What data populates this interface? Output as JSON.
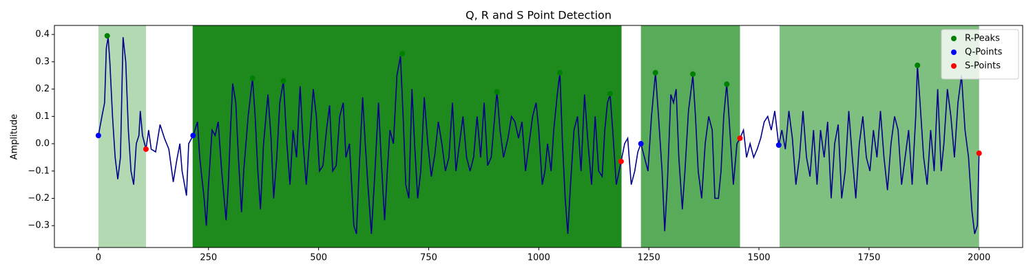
{
  "chart_data": {
    "type": "line",
    "title": "Q, R and S Point Detection",
    "y_label": "Amplitude",
    "xlim": [
      -99.95,
      2098.95
    ],
    "ylim": [
      -0.38,
      0.433
    ],
    "xticks": [
      0,
      250,
      500,
      750,
      1000,
      1250,
      1500,
      1750,
      2000
    ],
    "yticks": [
      {
        "value": -0.3,
        "label": "−0.3"
      },
      {
        "value": -0.2,
        "label": "−0.2"
      },
      {
        "value": -0.1,
        "label": "−0.1"
      },
      {
        "value": 0,
        "label": "0.0"
      },
      0.1,
      0.2,
      0.3,
      0.4
    ],
    "legend_position": "upper right",
    "spans": [
      {
        "x": [
          0,
          108
        ],
        "color": "#b3d9b3"
      },
      {
        "x": [
          214,
          1188
        ],
        "color": "#1e8a1e"
      },
      {
        "x": [
          1232,
          1457
        ],
        "color": "#58ab58"
      },
      {
        "x": [
          1547,
          2000
        ],
        "color": "#7fbf7f"
      }
    ],
    "signal": {
      "color": "#00008b",
      "x": [
        0,
        8,
        14,
        18,
        22,
        26,
        32,
        38,
        44,
        50,
        56,
        62,
        68,
        74,
        80,
        86,
        92,
        95,
        100,
        108,
        114,
        120,
        130,
        140,
        150,
        160,
        170,
        178,
        185,
        190,
        200,
        205,
        215,
        225,
        230,
        240,
        245,
        250,
        258,
        265,
        272,
        280,
        290,
        295,
        300,
        305,
        312,
        318,
        325,
        330,
        340,
        350,
        356,
        362,
        368,
        375,
        385,
        392,
        398,
        405,
        412,
        420,
        428,
        435,
        442,
        450,
        458,
        465,
        472,
        480,
        488,
        495,
        502,
        510,
        518,
        525,
        532,
        540,
        548,
        556,
        562,
        570,
        580,
        586,
        592,
        600,
        606,
        612,
        620,
        628,
        636,
        642,
        650,
        656,
        662,
        670,
        678,
        686,
        692,
        698,
        705,
        712,
        718,
        725,
        732,
        740,
        748,
        756,
        764,
        772,
        780,
        788,
        796,
        804,
        812,
        820,
        828,
        836,
        844,
        852,
        860,
        868,
        876,
        884,
        892,
        900,
        905,
        912,
        920,
        930,
        938,
        946,
        954,
        962,
        970,
        978,
        986,
        994,
        1000,
        1008,
        1014,
        1020,
        1028,
        1034,
        1042,
        1048,
        1054,
        1060,
        1066,
        1072,
        1080,
        1088,
        1096,
        1104,
        1112,
        1120,
        1128,
        1136,
        1144,
        1150,
        1156,
        1162,
        1168,
        1176,
        1187,
        1195,
        1202,
        1210,
        1218,
        1225,
        1232,
        1240,
        1248,
        1256,
        1265,
        1272,
        1280,
        1286,
        1292,
        1300,
        1306,
        1312,
        1318,
        1326,
        1332,
        1340,
        1350,
        1356,
        1362,
        1370,
        1378,
        1386,
        1394,
        1400,
        1408,
        1414,
        1420,
        1427,
        1434,
        1442,
        1450,
        1457,
        1465,
        1472,
        1480,
        1488,
        1496,
        1504,
        1512,
        1520,
        1528,
        1536,
        1545,
        1552,
        1560,
        1568,
        1576,
        1584,
        1592,
        1600,
        1608,
        1616,
        1624,
        1632,
        1640,
        1648,
        1656,
        1664,
        1672,
        1680,
        1688,
        1696,
        1704,
        1712,
        1720,
        1728,
        1736,
        1744,
        1752,
        1760,
        1768,
        1776,
        1784,
        1792,
        1800,
        1808,
        1816,
        1824,
        1832,
        1840,
        1848,
        1856,
        1860,
        1866,
        1874,
        1882,
        1890,
        1898,
        1906,
        1914,
        1920,
        1928,
        1936,
        1944,
        1952,
        1960,
        1968,
        1976,
        1984,
        1990,
        1996,
        2000
      ],
      "values": [
        0.03,
        0.1,
        0.15,
        0.35,
        0.39,
        0.3,
        0.1,
        -0.05,
        -0.13,
        -0.05,
        0.39,
        0.3,
        0.05,
        -0.1,
        -0.15,
        0.0,
        0.03,
        0.12,
        0.03,
        -0.02,
        0.05,
        -0.02,
        -0.03,
        0.07,
        0.02,
        -0.02,
        -0.14,
        -0.06,
        0.0,
        -0.1,
        -0.19,
        0.0,
        0.03,
        0.08,
        -0.05,
        -0.2,
        -0.3,
        -0.15,
        0.05,
        0.03,
        0.08,
        -0.1,
        -0.28,
        -0.15,
        0.05,
        0.22,
        0.15,
        -0.05,
        -0.25,
        -0.1,
        0.1,
        0.24,
        0.1,
        -0.1,
        -0.24,
        0.0,
        0.18,
        0.02,
        -0.2,
        -0.05,
        0.15,
        0.23,
        0.0,
        -0.15,
        0.05,
        -0.05,
        0.21,
        0.0,
        -0.15,
        0.02,
        0.2,
        0.1,
        -0.1,
        -0.08,
        0.05,
        0.14,
        -0.1,
        -0.08,
        0.1,
        0.15,
        -0.05,
        0.0,
        -0.3,
        -0.33,
        -0.1,
        0.17,
        0.0,
        -0.15,
        -0.33,
        -0.1,
        0.15,
        -0.05,
        -0.28,
        -0.1,
        0.05,
        0.0,
        0.25,
        0.32,
        0.1,
        -0.15,
        -0.2,
        0.2,
        0.0,
        -0.2,
        -0.1,
        0.17,
        0.0,
        -0.12,
        -0.04,
        0.08,
        0.0,
        -0.1,
        -0.05,
        0.15,
        -0.1,
        0.0,
        0.1,
        -0.05,
        -0.1,
        -0.05,
        0.1,
        -0.05,
        0.15,
        -0.08,
        -0.05,
        0.1,
        0.19,
        0.05,
        -0.05,
        0.02,
        0.1,
        0.08,
        0.02,
        0.08,
        -0.1,
        0.0,
        0.1,
        0.15,
        0.05,
        -0.15,
        -0.1,
        0.0,
        -0.1,
        0.05,
        0.18,
        0.26,
        0.0,
        -0.2,
        -0.33,
        -0.15,
        0.05,
        0.1,
        -0.1,
        0.18,
        0.0,
        -0.15,
        0.1,
        -0.1,
        -0.12,
        0.05,
        0.15,
        0.18,
        0.05,
        -0.15,
        -0.065,
        0.0,
        0.02,
        -0.15,
        -0.1,
        -0.03,
        0.0,
        -0.05,
        -0.1,
        0.1,
        0.26,
        0.1,
        -0.1,
        -0.32,
        -0.15,
        0.18,
        0.15,
        0.2,
        -0.05,
        -0.24,
        -0.1,
        0.12,
        0.25,
        0.1,
        -0.1,
        -0.2,
        0.0,
        0.1,
        0.05,
        -0.2,
        -0.2,
        -0.1,
        0.1,
        0.22,
        0.05,
        -0.15,
        0.0,
        0.02,
        0.05,
        -0.05,
        0.0,
        -0.05,
        -0.02,
        0.02,
        0.08,
        0.1,
        0.05,
        0.12,
        -0.005,
        0.05,
        -0.02,
        0.12,
        0.02,
        -0.15,
        -0.05,
        0.12,
        -0.05,
        -0.12,
        0.05,
        -0.15,
        0.05,
        -0.05,
        0.08,
        -0.2,
        0.0,
        0.07,
        -0.2,
        -0.1,
        0.12,
        -0.05,
        -0.2,
        0.0,
        0.1,
        -0.05,
        -0.1,
        0.05,
        -0.05,
        0.12,
        -0.05,
        -0.17,
        0.0,
        0.1,
        0.05,
        -0.15,
        -0.05,
        0.05,
        -0.15,
        0.1,
        0.287,
        0.15,
        -0.05,
        -0.15,
        0.05,
        -0.1,
        0.2,
        -0.1,
        0.0,
        0.2,
        0.1,
        -0.05,
        0.15,
        0.25,
        0.05,
        -0.05,
        -0.25,
        -0.33,
        -0.3,
        -0.035
      ]
    },
    "series": [
      {
        "name": "R-Peaks",
        "color": "#008000",
        "x": [
          20,
          350,
          420,
          690,
          905,
          1048,
          1162,
          1265,
          1350,
          1427,
          1860
        ],
        "values": [
          0.395,
          0.24,
          0.23,
          0.33,
          0.19,
          0.26,
          0.183,
          0.26,
          0.255,
          0.218,
          0.287
        ]
      },
      {
        "name": "Q-Points",
        "color": "#0000ff",
        "x": [
          0,
          215,
          1232,
          1545
        ],
        "values": [
          0.03,
          0.03,
          0.0,
          -0.005
        ]
      },
      {
        "name": "S-Points",
        "color": "#ff0000",
        "x": [
          108,
          1187,
          1457,
          2000
        ],
        "values": [
          -0.02,
          -0.065,
          0.02,
          -0.035
        ]
      }
    ]
  }
}
